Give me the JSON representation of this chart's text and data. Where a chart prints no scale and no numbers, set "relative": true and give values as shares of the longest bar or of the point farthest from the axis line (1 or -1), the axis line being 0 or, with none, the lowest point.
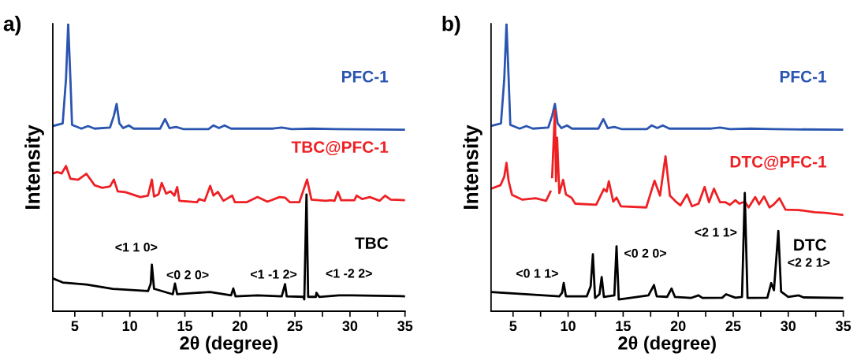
{
  "chart_data": [
    {
      "type": "line",
      "title": "a)",
      "xlabel": "2θ (degree)",
      "ylabel": "Intensity",
      "relative": true,
      "xlim": [
        3,
        35
      ],
      "xticks": [
        5,
        {
          "value": 7.5,
          "label": null
        },
        10,
        {
          "value": 12.5,
          "label": null
        },
        15,
        {
          "value": 17.5,
          "label": null
        },
        20,
        {
          "value": 22.5,
          "label": null
        },
        25,
        {
          "value": 27.5,
          "label": null
        },
        30,
        {
          "value": 32.5,
          "label": null
        },
        35
      ],
      "grid": false,
      "legend": false,
      "marker": "none",
      "line_style": "solid",
      "series": [
        {
          "name": "PFC-1",
          "color": "#2a55b0",
          "x": [
            3,
            3.9,
            4.2,
            4.4,
            4.6,
            4.75,
            5.6,
            6.2,
            6.8,
            8.2,
            8.55,
            8.8,
            9.05,
            9.4,
            9.9,
            10.35,
            12.75,
            13.2,
            13.6,
            14.2,
            14.9,
            17.15,
            17.6,
            18.1,
            18.6,
            19.2,
            23.0,
            23.8,
            24.7,
            26.6,
            28.7,
            35
          ],
          "values": [
            0.644,
            0.653,
            0.808,
            1.0,
            0.808,
            0.648,
            0.635,
            0.644,
            0.635,
            0.639,
            0.68,
            0.721,
            0.653,
            0.637,
            0.646,
            0.635,
            0.635,
            0.668,
            0.637,
            0.641,
            0.633,
            0.633,
            0.646,
            0.637,
            0.646,
            0.635,
            0.635,
            0.639,
            0.633,
            0.635,
            0.633,
            0.631
          ]
        },
        {
          "name": "TBC@PFC-1",
          "color": "#ee2024",
          "x": [
            3,
            3.4,
            3.8,
            4.2,
            4.6,
            5.3,
            6.05,
            6.8,
            7.5,
            8.2,
            8.55,
            8.9,
            9.6,
            10.95,
            11.65,
            12.0,
            12.2,
            12.6,
            12.9,
            13.3,
            13.7,
            14.05,
            14.3,
            14.5,
            16.1,
            16.3,
            16.8,
            17.3,
            17.6,
            18.0,
            18.5,
            19.3,
            19.55,
            20.6,
            21.6,
            22.5,
            23.6,
            24.1,
            24.55,
            25.4,
            26.1,
            26.5,
            27.8,
            28.25,
            28.6,
            28.9,
            29.2,
            30.4,
            30.6,
            31.1,
            31.8,
            32.7,
            33.2,
            33.7,
            35
          ],
          "values": [
            0.479,
            0.484,
            0.479,
            0.505,
            0.461,
            0.457,
            0.478,
            0.438,
            0.429,
            0.434,
            0.458,
            0.417,
            0.414,
            0.397,
            0.402,
            0.458,
            0.399,
            0.406,
            0.446,
            0.409,
            0.417,
            0.402,
            0.432,
            0.384,
            0.379,
            0.39,
            0.384,
            0.436,
            0.402,
            0.415,
            0.384,
            0.402,
            0.379,
            0.379,
            0.397,
            0.381,
            0.397,
            0.395,
            0.379,
            0.379,
            0.458,
            0.388,
            0.384,
            0.386,
            0.384,
            0.415,
            0.386,
            0.386,
            0.402,
            0.39,
            0.397,
            0.384,
            0.402,
            0.388,
            0.386
          ]
        },
        {
          "name": "TBC",
          "color": "#000000",
          "x": [
            3,
            3.9,
            6.05,
            8.45,
            11.65,
            11.9,
            12.0,
            12.2,
            13.9,
            14.1,
            14.3,
            16.1,
            17.3,
            19.2,
            19.4,
            19.6,
            21.6,
            23.8,
            24.1,
            24.25,
            25.75,
            25.85,
            26.05,
            26.2,
            26.9,
            26.95,
            27.2,
            29,
            30.15,
            35
          ],
          "values": [
            0.114,
            0.1,
            0.093,
            0.078,
            0.07,
            0.096,
            0.162,
            0.078,
            0.059,
            0.096,
            0.059,
            0.064,
            0.067,
            0.055,
            0.079,
            0.052,
            0.055,
            0.052,
            0.094,
            0.052,
            0.05,
            0.041,
            0.406,
            0.05,
            0.05,
            0.064,
            0.05,
            0.055,
            0.055,
            0.052
          ]
        }
      ],
      "annotations": [
        "<1 1 0>",
        "<0 2 0>",
        "<1 -1 2>",
        "<1 -2 2>"
      ]
    },
    {
      "type": "line",
      "title": "b)",
      "xlabel": "2θ (degree)",
      "ylabel": "Intensity",
      "relative": true,
      "xlim": [
        3,
        35
      ],
      "xticks": [
        5,
        {
          "value": 7.5,
          "label": null
        },
        10,
        {
          "value": 12.5,
          "label": null
        },
        15,
        {
          "value": 17.5,
          "label": null
        },
        20,
        {
          "value": 22.5,
          "label": null
        },
        25,
        {
          "value": 27.5,
          "label": null
        },
        30,
        {
          "value": 32.5,
          "label": null
        },
        35
      ],
      "grid": false,
      "legend": false,
      "marker": "none",
      "line_style": "solid",
      "series": [
        {
          "name": "PFC-1",
          "color": "#2a55b0",
          "x": [
            3,
            3.9,
            4.2,
            4.4,
            4.6,
            4.75,
            5.6,
            6.2,
            6.8,
            8.2,
            8.55,
            8.8,
            9.05,
            9.4,
            9.9,
            10.35,
            12.75,
            13.2,
            13.6,
            14.2,
            14.9,
            17.15,
            17.6,
            18.1,
            18.6,
            19.2,
            23.0,
            23.8,
            24.7,
            26.6,
            28.7,
            35
          ],
          "values": [
            0.644,
            0.653,
            0.808,
            1.0,
            0.808,
            0.648,
            0.635,
            0.644,
            0.635,
            0.639,
            0.68,
            0.721,
            0.653,
            0.637,
            0.646,
            0.635,
            0.635,
            0.668,
            0.637,
            0.641,
            0.633,
            0.633,
            0.646,
            0.637,
            0.646,
            0.635,
            0.635,
            0.639,
            0.633,
            0.635,
            0.633,
            0.631
          ]
        },
        {
          "name": "DTC@PFC-1",
          "color": "#ee2024",
          "x": [
            3,
            3.85,
            4.2,
            4.4,
            4.6,
            4.9,
            5.85,
            7.05,
            8.0,
            8.4,
            8.47,
            8.55,
            8.8,
            8.9,
            9.0,
            9.2,
            9.55,
            9.8,
            10.3,
            10.65,
            12.55,
            13.25,
            13.5,
            13.7,
            14.1,
            14.4,
            14.8,
            17.1,
            17.85,
            18.35,
            18.85,
            19.25,
            19.85,
            20.2,
            20.8,
            21.25,
            21.85,
            22.4,
            22.8,
            23.25,
            23.8,
            24.3,
            24.7,
            25.2,
            25.55,
            26.05,
            26.4,
            27.0,
            27.35,
            27.8,
            28.3,
            28.65,
            29.2,
            29.75,
            30.95,
            32.4,
            33.35,
            35
          ],
          "values": [
            0.426,
            0.438,
            0.468,
            0.516,
            0.452,
            0.405,
            0.388,
            0.393,
            0.384,
            0.416,
            null,
            0.466,
            0.699,
            0.452,
            0.603,
            0.411,
            0.457,
            0.406,
            0.395,
            0.374,
            0.37,
            0.425,
            0.416,
            0.452,
            0.381,
            0.395,
            0.365,
            0.361,
            0.454,
            0.402,
            0.539,
            0.402,
            0.379,
            0.368,
            0.406,
            0.365,
            0.374,
            0.432,
            0.379,
            0.426,
            0.379,
            0.379,
            0.37,
            0.386,
            0.374,
            0.381,
            0.361,
            0.397,
            0.372,
            0.399,
            0.361,
            0.37,
            0.393,
            0.353,
            0.352,
            0.344,
            0.342,
            0.335
          ]
        },
        {
          "name": "DTC",
          "color": "#000000",
          "x": [
            3,
            6.1,
            9.2,
            9.45,
            9.6,
            9.8,
            11.7,
            12.05,
            12.25,
            12.45,
            12.85,
            13.05,
            13.25,
            14.2,
            14.4,
            14.6,
            17.3,
            17.8,
            18.05,
            19.0,
            19.4,
            19.7,
            21.15,
            21.85,
            22.2,
            24.0,
            24.35,
            25.2,
            25.8,
            26.05,
            26.3,
            28.1,
            28.45,
            28.7,
            29.1,
            29.35,
            30.0,
            30.95,
            31.4,
            35
          ],
          "values": [
            0.067,
            0.059,
            0.052,
            0.064,
            0.098,
            0.052,
            0.052,
            0.087,
            0.198,
            0.046,
            0.059,
            0.119,
            0.05,
            0.055,
            0.226,
            0.041,
            0.055,
            0.091,
            0.052,
            0.05,
            0.079,
            0.05,
            0.046,
            0.055,
            0.046,
            0.047,
            0.059,
            0.047,
            0.05,
            0.411,
            0.046,
            0.047,
            0.098,
            0.073,
            0.279,
            0.068,
            0.05,
            0.055,
            0.048,
            0.046
          ]
        }
      ],
      "annotations": [
        "<0 1 1>",
        "<0 2 0>",
        "<2 1 1>",
        "<2 2 1>"
      ]
    }
  ]
}
